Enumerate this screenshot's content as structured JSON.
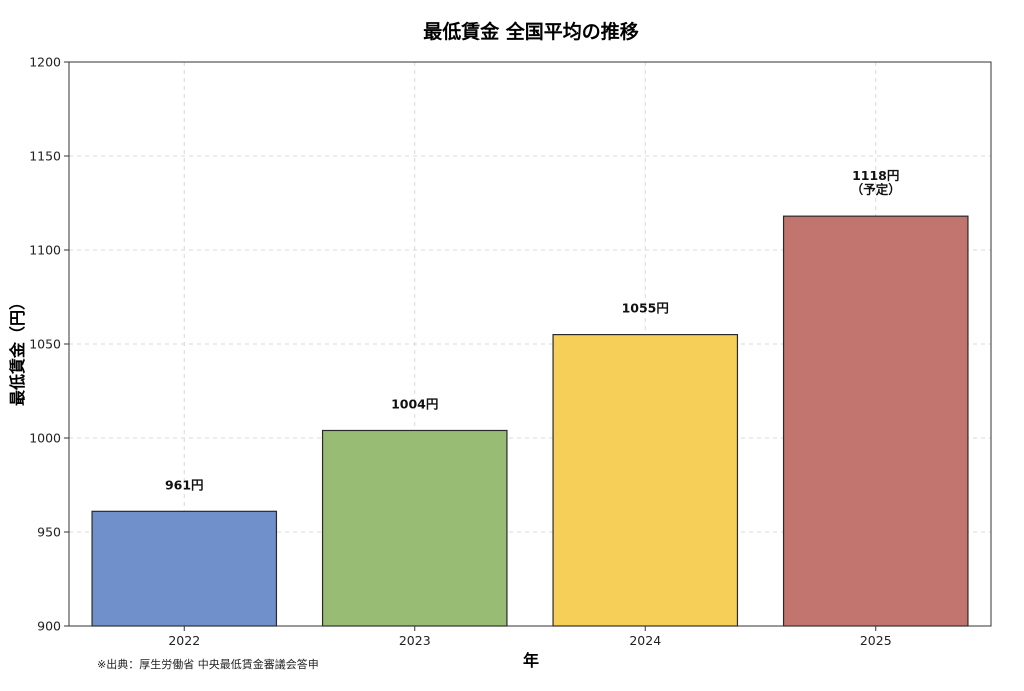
{
  "chart_data": {
    "type": "bar",
    "title": "最低賃金 全国平均の推移",
    "xlabel": "年",
    "ylabel": "最低賃金（円）",
    "categories": [
      "2022",
      "2023",
      "2024",
      "2025"
    ],
    "values": [
      961,
      1004,
      1055,
      1118
    ],
    "data_labels": [
      "961円",
      "1004円",
      "1055円",
      "1118円\n（予定）"
    ],
    "colors": [
      "#7090cc",
      "#98bc74",
      "#f5cf58",
      "#c2756e"
    ],
    "ylim": [
      900,
      1200
    ],
    "yticks": [
      900,
      950,
      1000,
      1050,
      1100,
      1150,
      1200
    ],
    "grid": true
  },
  "source_note": "※出典：厚生労働省 中央最低賃金審議会答申"
}
